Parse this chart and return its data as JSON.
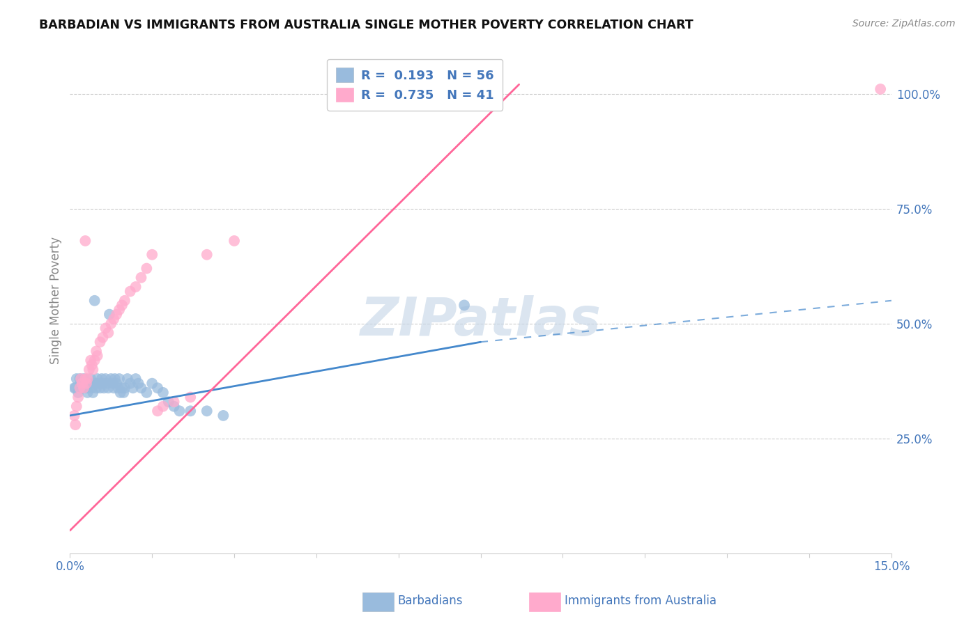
{
  "title": "BARBADIAN VS IMMIGRANTS FROM AUSTRALIA SINGLE MOTHER POVERTY CORRELATION CHART",
  "source": "Source: ZipAtlas.com",
  "ylabel": "Single Mother Poverty",
  "legend_label1": "Barbadians",
  "legend_label2": "Immigrants from Australia",
  "R1": "0.193",
  "N1": "56",
  "R2": "0.735",
  "N2": "41",
  "color_blue": "#99BBDD",
  "color_pink": "#FFAACC",
  "line_blue": "#4488CC",
  "line_pink": "#FF6699",
  "color_text": "#4477BB",
  "watermark_color": "#C8D8E8",
  "xlim": [
    0.0,
    15.0
  ],
  "ylim": [
    0.0,
    110.0
  ],
  "barbadians_x": [
    0.08,
    0.12,
    0.15,
    0.2,
    0.22,
    0.25,
    0.28,
    0.3,
    0.32,
    0.35,
    0.38,
    0.4,
    0.42,
    0.45,
    0.48,
    0.5,
    0.52,
    0.55,
    0.58,
    0.6,
    0.62,
    0.65,
    0.68,
    0.7,
    0.72,
    0.75,
    0.78,
    0.8,
    0.82,
    0.85,
    0.88,
    0.9,
    0.92,
    0.95,
    0.98,
    1.0,
    1.05,
    1.1,
    1.15,
    1.2,
    1.25,
    1.3,
    1.4,
    1.5,
    1.6,
    1.7,
    1.8,
    1.9,
    2.0,
    2.2,
    2.5,
    2.8,
    0.1,
    0.18,
    7.2,
    0.45
  ],
  "barbadians_y": [
    36,
    38,
    35,
    37,
    36,
    38,
    37,
    36,
    35,
    37,
    38,
    36,
    35,
    37,
    36,
    38,
    37,
    36,
    38,
    37,
    36,
    38,
    37,
    36,
    52,
    38,
    37,
    36,
    38,
    37,
    36,
    38,
    35,
    36,
    35,
    36,
    38,
    37,
    36,
    38,
    37,
    36,
    35,
    37,
    36,
    35,
    33,
    32,
    31,
    31,
    31,
    30,
    36,
    38,
    54,
    55
  ],
  "australia_x": [
    0.08,
    0.1,
    0.12,
    0.15,
    0.18,
    0.2,
    0.22,
    0.25,
    0.28,
    0.3,
    0.32,
    0.35,
    0.38,
    0.4,
    0.42,
    0.45,
    0.48,
    0.5,
    0.55,
    0.6,
    0.65,
    0.7,
    0.75,
    0.8,
    0.85,
    0.9,
    0.95,
    1.0,
    1.1,
    1.2,
    1.3,
    1.4,
    1.5,
    1.6,
    1.7,
    1.9,
    2.2,
    2.5,
    3.0,
    14.8,
    0.28
  ],
  "australia_y": [
    30,
    28,
    32,
    34,
    36,
    38,
    37,
    36,
    38,
    37,
    38,
    40,
    42,
    41,
    40,
    42,
    44,
    43,
    46,
    47,
    49,
    48,
    50,
    51,
    52,
    53,
    54,
    55,
    57,
    58,
    60,
    62,
    65,
    31,
    32,
    33,
    34,
    65,
    68,
    101,
    68
  ]
}
